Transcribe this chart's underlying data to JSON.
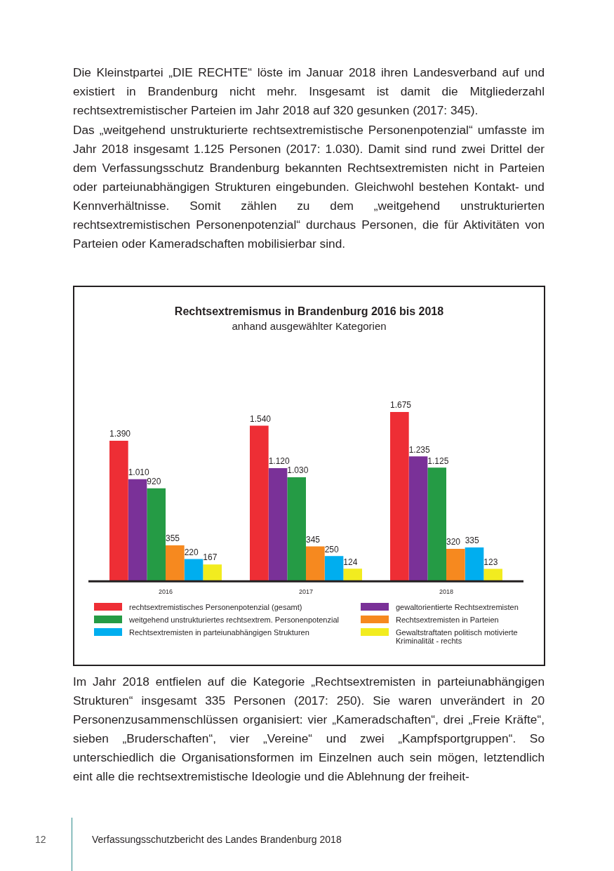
{
  "chart_data": {
    "type": "bar",
    "title": "Rechtsextremismus in Brandenburg 2016 bis 2018",
    "subtitle": "anhand ausgewählter Kategorien",
    "categories": [
      "2016",
      "2017",
      "2018"
    ],
    "series": [
      {
        "name": "rechtsextremistisches Personenpotenzial (gesamt)",
        "color": "#ee2e35",
        "values": [
          1390,
          1540,
          1675
        ],
        "value_labels": [
          "1.390",
          "1.540",
          "1.675"
        ]
      },
      {
        "name": "gewaltorientierte Rechtsextremisten",
        "color": "#7a3198",
        "values": [
          1010,
          1120,
          1235
        ],
        "value_labels": [
          "1.010",
          "1.120",
          "1.235"
        ]
      },
      {
        "name": "weitgehend unstrukturiertes rechtsextrem. Personenpotenzial",
        "color": "#259b45",
        "values": [
          920,
          1030,
          1125
        ],
        "value_labels": [
          "920",
          "1.030",
          "1.125"
        ]
      },
      {
        "name": "Rechtsextremisten in Parteien",
        "color": "#f6891f",
        "values": [
          355,
          345,
          320
        ],
        "value_labels": [
          "355",
          "345",
          "320"
        ]
      },
      {
        "name": "Rechtsextremisten in parteiunabhängigen Strukturen",
        "color": "#00aeef",
        "values": [
          220,
          250,
          335
        ],
        "value_labels": [
          "220",
          "250",
          "335"
        ]
      },
      {
        "name": "Gewaltstraftaten politisch motivierte Kriminalität - rechts",
        "color": "#f2ec1f",
        "values": [
          167,
          124,
          123
        ],
        "value_labels": [
          "167",
          "124",
          "123"
        ]
      }
    ],
    "legend": "bottom",
    "grid": false,
    "annotations": [
      "Die Kleinstpartei „DIE RECHTE“ löste im Januar 2018 ihren Landesverband auf und existiert in Brandenburg nicht mehr. Insgesamt ist damit die Mitgliederzahl rechtsextremistischer Parteien im Jahr 2018 auf 320 gesunken (2017: 345).",
      "Das „weitgehend unstrukturierte rechtsextremistische Personenpotenzial“ umfasste im Jahr 2018 insgesamt 1.125 Personen (2017: 1.030). Damit sind rund zwei Drittel der dem Verfassungsschutz Brandenburg bekannten Rechtsextremisten nicht in Parteien oder parteiunabhängigen Strukturen eingebunden. Gleichwohl bestehen Kontakt- und Kennverhältnisse. Somit zählen zu dem „weitgehend unstrukturierten rechtsextremistischen Personenpotenzial“ durchaus Personen, die für Aktivitäten von Parteien oder Kameradschaften mobilisierbar sind.",
      "Im Jahr 2018 entfielen auf die Kategorie „Rechtsextremisten in parteiunabhängigen Strukturen“ insgesamt 335 Personen (2017: 250). Sie waren unverändert in 20 Personenzusammenschlüssen organisiert: vier „Kameradschaften“, drei „Freie Kräfte“, sieben „Bruderschaften“, vier „Vereine“ und zwei „Kampfsportgruppen“. So unterschiedlich die Organisationsformen im Einzelnen auch sein mögen, letztendlich eint alle die rechtsextremistische Ideologie und die Ablehnung der freiheit-",
      "12",
      "Verfassungsschutzbericht des Landes Brandenburg 2018"
    ]
  }
}
